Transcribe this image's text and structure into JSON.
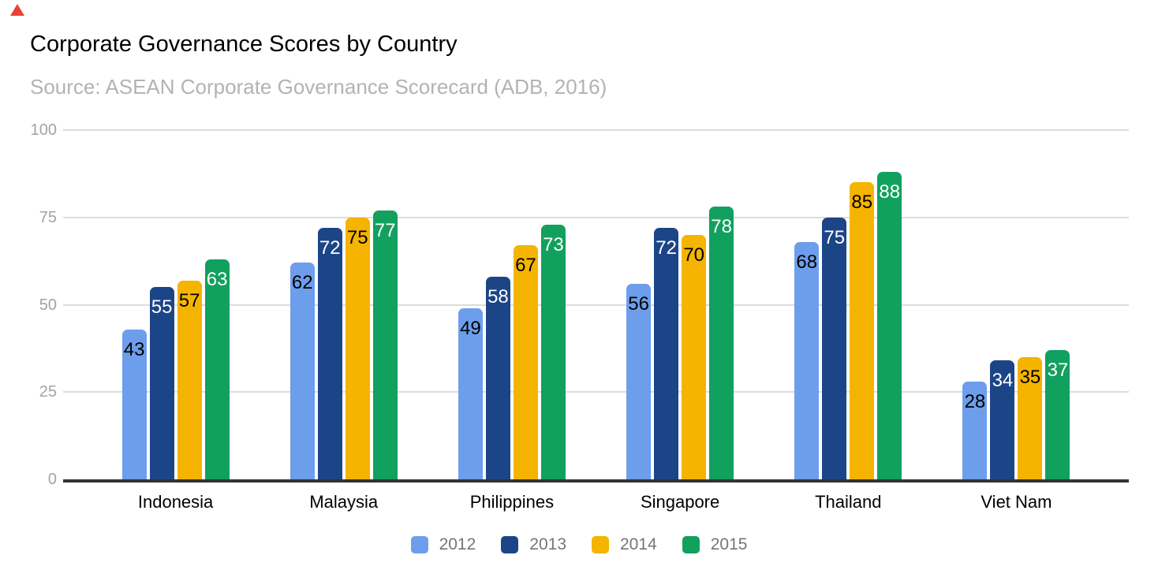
{
  "title": "Corporate Governance Scores by Country",
  "subtitle": "Source: ASEAN Corporate Governance Scorecard (ADB, 2016)",
  "corner_marker": {
    "icon": "red-triangle",
    "color": "#ea4335"
  },
  "colors": {
    "grid": "#dcdcdc",
    "axis": "#333333",
    "y_tick_text": "#a3a3a3",
    "x_label_text": "#000000",
    "legend_text": "#757575",
    "title_text": "#000000",
    "subtitle_text": "#b3b3b3"
  },
  "chart_data": {
    "type": "bar",
    "title": "Corporate Governance Scores by Country",
    "subtitle": "Source: ASEAN Corporate Governance Scorecard (ADB, 2016)",
    "categories": [
      "Indonesia",
      "Malaysia",
      "Philippines",
      "Singapore",
      "Thailand",
      "Viet Nam"
    ],
    "series": [
      {
        "name": "2012",
        "color": "#6d9eeb",
        "label_color": "#000000",
        "values": [
          43,
          62,
          49,
          56,
          68,
          28
        ]
      },
      {
        "name": "2013",
        "color": "#1c4587",
        "label_color": "#ffffff",
        "values": [
          55,
          72,
          58,
          72,
          75,
          34
        ]
      },
      {
        "name": "2014",
        "color": "#f4b400",
        "label_color": "#000000",
        "values": [
          57,
          75,
          67,
          70,
          85,
          35
        ]
      },
      {
        "name": "2015",
        "color": "#12a05e",
        "label_color": "#ffffff",
        "values": [
          63,
          77,
          73,
          78,
          88,
          37
        ]
      }
    ],
    "xlabel": "",
    "ylabel": "",
    "ylim": [
      0,
      100
    ],
    "yticks": [
      0,
      25,
      50,
      75,
      100
    ],
    "grid": true,
    "data_labels": true,
    "legend_position": "bottom"
  }
}
